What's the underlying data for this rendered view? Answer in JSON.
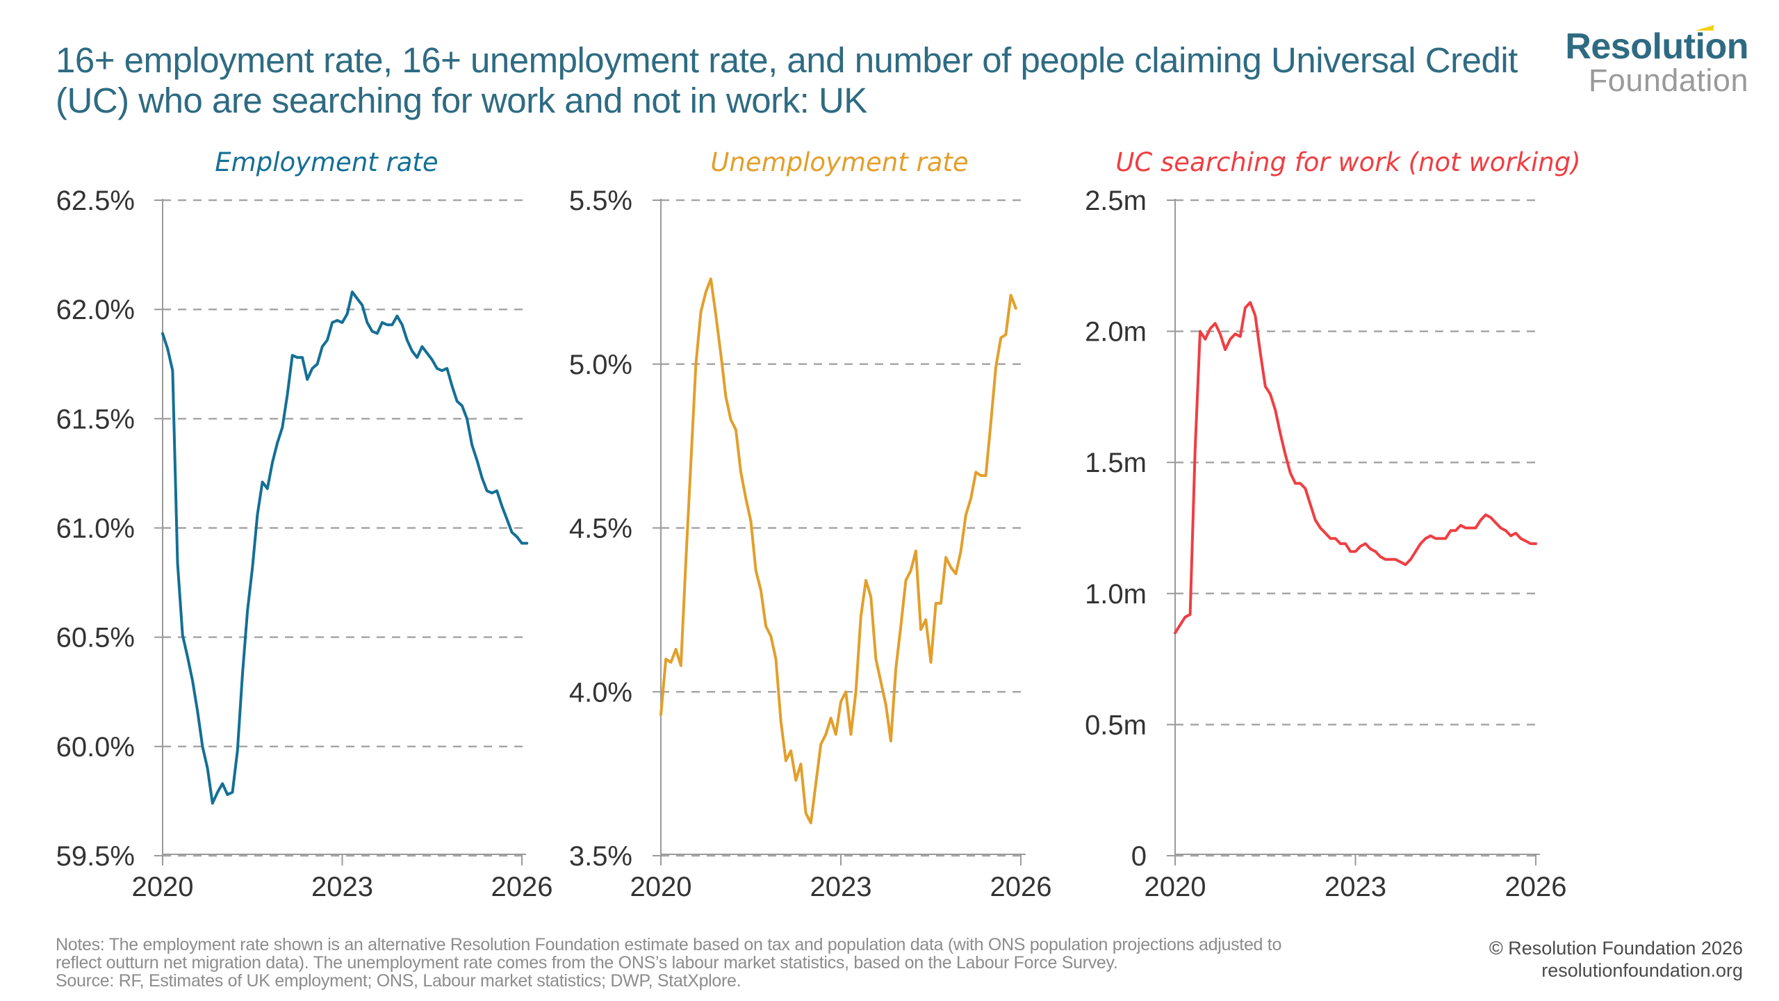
{
  "header": {
    "title": "16+ employment rate, 16+ unemployment rate, and number of people claiming Universal Credit (UC) who are searching for work and not in work: UK",
    "logo_top": "Resolution",
    "logo_bottom": "Foundation"
  },
  "colors": {
    "title": "#2e6b82",
    "employment": "#146f96",
    "unemployment": "#e29f2b",
    "uc": "#ef3e42",
    "grid": "#a6a6a6",
    "axis": "#9a9a9a",
    "accent": "#f2d012"
  },
  "chart_data": [
    {
      "type": "line",
      "title": "Employment rate",
      "xlabel": "",
      "ylabel": "",
      "x_start": "2020-01",
      "x_frequency": "monthly",
      "xlim": [
        2020,
        2026
      ],
      "xticks": [
        "2020",
        "2023",
        "2026"
      ],
      "ylim": [
        59.5,
        62.5
      ],
      "yticks": [
        59.5,
        60.0,
        60.5,
        61.0,
        61.5,
        62.0,
        62.5
      ],
      "ytick_labels": [
        "59.5%",
        "60.0%",
        "60.5%",
        "61.0%",
        "61.5%",
        "62.0%",
        "62.5%"
      ],
      "grid": true,
      "legend": "none",
      "series": [
        {
          "name": "Employment rate",
          "color": "#146f96",
          "values": [
            61.89,
            61.82,
            61.72,
            60.84,
            60.51,
            60.41,
            60.3,
            60.16,
            60.0,
            59.9,
            59.74,
            59.79,
            59.83,
            59.78,
            59.79,
            59.98,
            60.33,
            60.62,
            60.82,
            61.06,
            61.21,
            61.18,
            61.3,
            61.39,
            61.46,
            61.61,
            61.79,
            61.78,
            61.78,
            61.68,
            61.73,
            61.75,
            61.83,
            61.86,
            61.94,
            61.95,
            61.94,
            61.98,
            62.08,
            62.05,
            62.02,
            61.94,
            61.9,
            61.89,
            61.94,
            61.93,
            61.93,
            61.97,
            61.93,
            61.86,
            61.81,
            61.78,
            61.83,
            61.8,
            61.77,
            61.73,
            61.72,
            61.73,
            61.65,
            61.58,
            61.56,
            61.5,
            61.38,
            61.31,
            61.23,
            61.17,
            61.16,
            61.17,
            61.1,
            61.04,
            60.98,
            60.96,
            60.93,
            60.93
          ]
        }
      ]
    },
    {
      "type": "line",
      "title": "Unemployment rate",
      "xlabel": "",
      "ylabel": "",
      "x_start": "2020-01",
      "x_frequency": "monthly",
      "xlim": [
        2020,
        2026
      ],
      "xticks": [
        "2020",
        "2023",
        "2026"
      ],
      "ylim": [
        3.5,
        5.5
      ],
      "yticks": [
        3.5,
        4.0,
        4.5,
        5.0,
        5.5
      ],
      "ytick_labels": [
        "3.5%",
        "4.0%",
        "4.5%",
        "5.0%",
        "5.5%"
      ],
      "grid": true,
      "legend": "none",
      "series": [
        {
          "name": "Unemployment rate",
          "color": "#e29f2b",
          "values": [
            3.93,
            4.1,
            4.09,
            4.13,
            4.08,
            4.4,
            4.7,
            5.0,
            5.16,
            5.22,
            5.26,
            5.15,
            5.03,
            4.9,
            4.83,
            4.8,
            4.67,
            4.59,
            4.52,
            4.37,
            4.31,
            4.2,
            4.17,
            4.1,
            3.91,
            3.79,
            3.82,
            3.73,
            3.78,
            3.63,
            3.6,
            3.72,
            3.84,
            3.87,
            3.92,
            3.87,
            3.97,
            4.0,
            3.87,
            4.0,
            4.23,
            4.34,
            4.29,
            4.1,
            4.03,
            3.96,
            3.85,
            4.07,
            4.2,
            4.34,
            4.37,
            4.43,
            4.19,
            4.22,
            4.09,
            4.27,
            4.27,
            4.41,
            4.38,
            4.36,
            4.43,
            4.54,
            4.59,
            4.67,
            4.66,
            4.66,
            4.82,
            4.99,
            5.08,
            5.09,
            5.21,
            5.17
          ]
        }
      ]
    },
    {
      "type": "line",
      "title": "UC searching for work (not working)",
      "xlabel": "",
      "ylabel": "",
      "x_start": "2020-01",
      "x_frequency": "monthly",
      "xlim": [
        2020,
        2026
      ],
      "xticks": [
        "2020",
        "2023",
        "2026"
      ],
      "ylim": [
        0,
        2.5
      ],
      "yticks": [
        0,
        0.5,
        1.0,
        1.5,
        2.0,
        2.5
      ],
      "ytick_labels": [
        "0",
        "0.5m",
        "1.0m",
        "1.5m",
        "2.0m",
        "2.5m"
      ],
      "units": "millions",
      "grid": true,
      "legend": "none",
      "series": [
        {
          "name": "UC searching for work (not working)",
          "color": "#ef3e42",
          "values": [
            0.85,
            0.88,
            0.91,
            0.92,
            1.55,
            2.0,
            1.97,
            2.01,
            2.03,
            1.99,
            1.93,
            1.97,
            1.99,
            1.98,
            2.09,
            2.11,
            2.06,
            1.92,
            1.79,
            1.76,
            1.7,
            1.61,
            1.53,
            1.46,
            1.42,
            1.42,
            1.4,
            1.34,
            1.28,
            1.25,
            1.23,
            1.21,
            1.21,
            1.19,
            1.19,
            1.16,
            1.16,
            1.18,
            1.19,
            1.17,
            1.16,
            1.14,
            1.13,
            1.13,
            1.13,
            1.12,
            1.11,
            1.13,
            1.16,
            1.19,
            1.21,
            1.22,
            1.21,
            1.21,
            1.21,
            1.24,
            1.24,
            1.26,
            1.25,
            1.25,
            1.25,
            1.28,
            1.3,
            1.29,
            1.27,
            1.25,
            1.24,
            1.22,
            1.23,
            1.21,
            1.2,
            1.19,
            1.19
          ]
        }
      ]
    }
  ],
  "footer": {
    "notes_line1": "Notes: The employment rate shown is an alternative Resolution Foundation estimate based on tax and population data (with ONS population projections adjusted to",
    "notes_line2": "reflect outturn net migration data). The unemployment rate comes from the ONS’s labour market statistics, based on the Labour Force Survey.",
    "source": "Source: RF, Estimates of UK employment; ONS, Labour market statistics; DWP, StatXplore.",
    "copyright": "© Resolution Foundation 2026",
    "website": "resolutionfoundation.org"
  }
}
